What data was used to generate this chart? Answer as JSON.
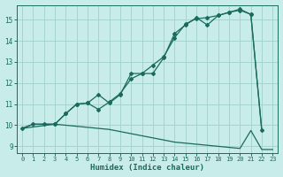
{
  "title": "",
  "xlabel": "Humidex (Indice chaleur)",
  "ylabel": "",
  "bg_color": "#c8ecea",
  "grid_color": "#a8d4d0",
  "line_color": "#1a6b5e",
  "xlim": [
    -0.5,
    23.5
  ],
  "ylim": [
    8.7,
    15.7
  ],
  "xticks": [
    0,
    1,
    2,
    3,
    4,
    5,
    6,
    7,
    8,
    9,
    10,
    11,
    12,
    13,
    14,
    15,
    16,
    17,
    18,
    19,
    20,
    21,
    22,
    23
  ],
  "yticks": [
    9,
    10,
    11,
    12,
    13,
    14,
    15
  ],
  "line1_x": [
    0,
    1,
    2,
    3,
    4,
    5,
    6,
    7,
    8,
    9,
    10,
    11,
    12,
    13,
    14,
    15,
    16,
    17,
    18,
    19,
    20,
    21,
    22,
    23
  ],
  "line1_y": [
    9.85,
    10.05,
    10.05,
    10.05,
    10.0,
    9.95,
    9.9,
    9.85,
    9.8,
    9.7,
    9.6,
    9.5,
    9.4,
    9.3,
    9.2,
    9.15,
    9.1,
    9.05,
    9.0,
    8.95,
    8.9,
    9.75,
    8.85,
    8.85
  ],
  "line2_x": [
    0,
    1,
    2,
    3,
    4,
    5,
    6,
    7,
    8,
    9,
    10,
    11,
    12,
    13,
    14,
    15,
    16,
    17,
    18,
    19,
    20,
    21,
    22
  ],
  "line2_y": [
    9.85,
    10.05,
    10.05,
    10.05,
    10.55,
    11.0,
    11.05,
    10.75,
    11.1,
    11.5,
    12.2,
    12.45,
    12.85,
    13.25,
    14.15,
    14.8,
    15.05,
    15.1,
    15.2,
    15.35,
    15.45,
    15.25,
    9.75
  ],
  "line3_x": [
    0,
    3,
    4,
    5,
    6,
    7,
    8,
    9,
    10,
    11,
    12,
    13,
    14,
    15,
    16,
    17,
    18,
    19,
    20,
    21,
    22
  ],
  "line3_y": [
    9.85,
    10.05,
    10.55,
    11.0,
    11.05,
    11.45,
    11.05,
    11.45,
    12.45,
    12.45,
    12.45,
    13.2,
    14.35,
    14.75,
    15.1,
    14.75,
    15.2,
    15.35,
    15.5,
    15.25,
    9.75
  ],
  "marker2_x": [
    0,
    1,
    2,
    3,
    4,
    5,
    6,
    7,
    8,
    9,
    10,
    11,
    12,
    13,
    14,
    15,
    16,
    17,
    18,
    19,
    20,
    21,
    22
  ],
  "marker2_y": [
    9.85,
    10.05,
    10.05,
    10.05,
    10.55,
    11.0,
    11.05,
    10.75,
    11.1,
    11.5,
    12.2,
    12.45,
    12.85,
    13.25,
    14.15,
    14.8,
    15.05,
    15.1,
    15.2,
    15.35,
    15.45,
    15.25,
    9.75
  ],
  "marker3_x": [
    3,
    4,
    5,
    6,
    7,
    8,
    9,
    10,
    11,
    12,
    13,
    14,
    15,
    16,
    17,
    18,
    19,
    20,
    21
  ],
  "marker3_y": [
    10.05,
    10.55,
    11.0,
    11.05,
    11.45,
    11.05,
    11.45,
    12.45,
    12.45,
    12.45,
    13.2,
    14.35,
    14.75,
    15.1,
    14.75,
    15.2,
    15.35,
    15.5,
    15.25
  ]
}
